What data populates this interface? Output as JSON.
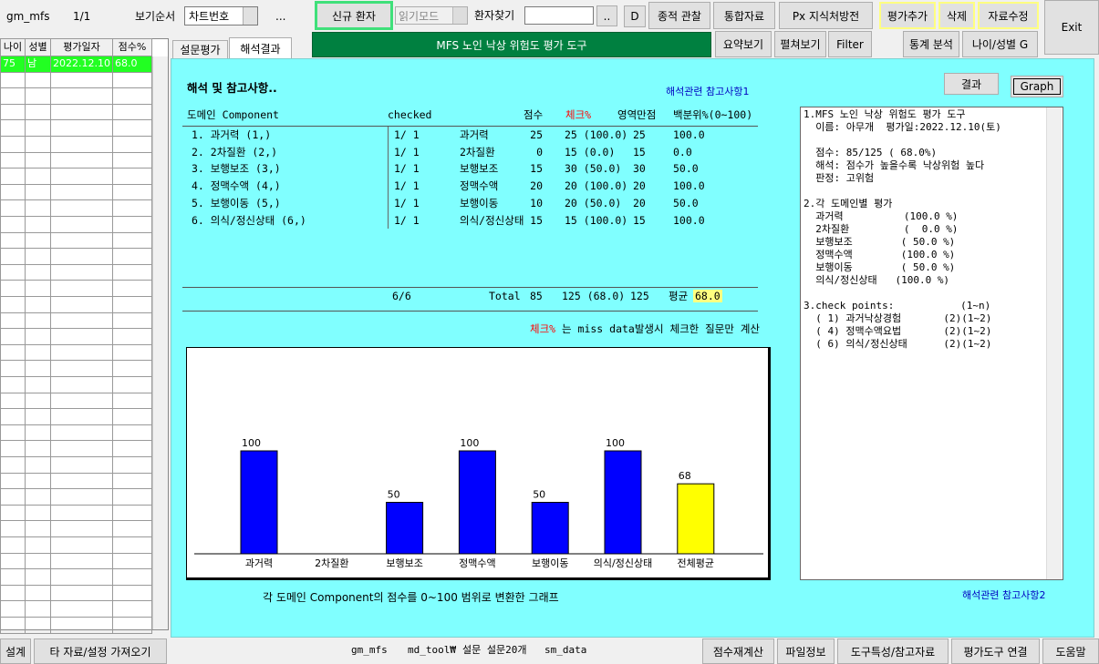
{
  "toolbar": {
    "app": "gm_mfs",
    "page": "1/1",
    "sort_label": "보기순서",
    "sort_value": "차트번호",
    "more": "...",
    "new_patient": "신규 환자",
    "mode": "읽기모드",
    "search_label": "환자찾기",
    "search_btn": "..",
    "d_btn": "D",
    "longitudinal": "종적 관찰",
    "integrated": "통합자료",
    "px": "Px 지식처방전",
    "add_eval": "평가추가",
    "delete": "삭제",
    "edit": "자료수정",
    "exit": "Exit"
  },
  "toolbar2": {
    "title": "MFS 노인 낙상 위험도 평가 도구",
    "summary": "요약보기",
    "expand": "펼쳐보기",
    "filter": "Filter",
    "stats": "통계 분석",
    "age_sex": "나이/성별 G"
  },
  "tabs": [
    "설문평가",
    "해석결과"
  ],
  "patient_list": {
    "columns": [
      "나이",
      "성별",
      "평가일자",
      "점수%"
    ],
    "rows": [
      [
        "75",
        "남",
        "2022.12.10",
        "68.0"
      ]
    ]
  },
  "panel": {
    "heading": "해석 및 참고사항..",
    "ref1": "해석관련 참고사항1",
    "ref2": "해석관련 참고사항2",
    "result_btn": "결과",
    "graph_btn": "Graph",
    "table": {
      "columns": [
        "도메인 Component",
        "checked",
        "점수",
        "체크%",
        "영역만점",
        "백분위%(0~100)"
      ],
      "rows": [
        [
          "1. 과거력 (1,)",
          "1/ 1",
          "과거력",
          "25",
          "25 (100.0)",
          "25",
          "100.0"
        ],
        [
          "2. 2차질환 (2,)",
          "1/ 1",
          "2차질환",
          "0",
          "15 (0.0)",
          "15",
          "0.0"
        ],
        [
          "3. 보행보조 (3,)",
          "1/ 1",
          "보행보조",
          "15",
          "30 (50.0)",
          "30",
          "50.0"
        ],
        [
          "4. 정맥수액 (4,)",
          "1/ 1",
          "정맥수액",
          "20",
          "20 (100.0)",
          "20",
          "100.0"
        ],
        [
          "5. 보행이동 (5,)",
          "1/ 1",
          "보행이동",
          "10",
          "20 (50.0)",
          "20",
          "50.0"
        ],
        [
          "6. 의식/정신상태 (6,)",
          "1/ 1",
          "의식/정신상태",
          "15",
          "15 (100.0)",
          "15",
          "100.0"
        ]
      ],
      "total": {
        "checked": "6/6",
        "label": "Total",
        "score": "85",
        "check": "125 (68.0)",
        "max": "125",
        "avg_label": "평균",
        "avg": "68.0"
      }
    },
    "note_red": "체크%",
    "note": "는 miss data발생시 체크한 질문만 계산",
    "caption": "각 도메인 Component의 점수를 0~100 범위로 변환한 그래프"
  },
  "chart_data": {
    "type": "bar",
    "categories": [
      "과거력",
      "2차질환",
      "보행보조",
      "정맥수액",
      "보행이동",
      "의식/정신상태",
      "전체평균"
    ],
    "values": [
      100,
      0,
      50,
      100,
      50,
      100,
      68
    ],
    "value_labels": [
      "100",
      null,
      "50",
      "100",
      "50",
      "100",
      "68"
    ],
    "colors": [
      "#0000ff",
      "#0000ff",
      "#0000ff",
      "#0000ff",
      "#0000ff",
      "#0000ff",
      "#ffff00"
    ],
    "ylim": [
      0,
      200
    ]
  },
  "report": {
    "sections": [
      [
        "1.MFS 노인 낙상 위험도 평가 도구",
        "  이름: 아무개  평가일:2022.12.10(토)"
      ],
      [
        "  점수: 85/125 ( 68.0%)",
        "  해석: 점수가 높을수록 낙상위험 높다",
        "  판정: 고위험"
      ],
      [
        "2.각 도메인별 평가",
        "  과거력          (100.0 %)",
        "  2차질환         (  0.0 %)",
        "  보행보조        ( 50.0 %)",
        "  정맥수액        (100.0 %)",
        "  보행이동        ( 50.0 %)",
        "  의식/정신상태   (100.0 %)"
      ],
      [
        "3.check points:           (1~n)",
        "  ( 1) 과거낙상경험       (2)(1~2)",
        "  ( 4) 정맥수액요법       (2)(1~2)",
        "  ( 6) 의식/정신상태      (2)(1~2)"
      ]
    ]
  },
  "status_bar": {
    "design": "설계",
    "import": "타 자료/설정 가져오기",
    "items": [
      "gm_mfs",
      "md_tool₩",
      "설문 설문20개",
      "sm_data"
    ],
    "recalc": "점수재계산",
    "file_info": "파일정보",
    "tool_info": "도구특성/참고자료",
    "link": "평가도구 연결",
    "help": "도움말"
  }
}
